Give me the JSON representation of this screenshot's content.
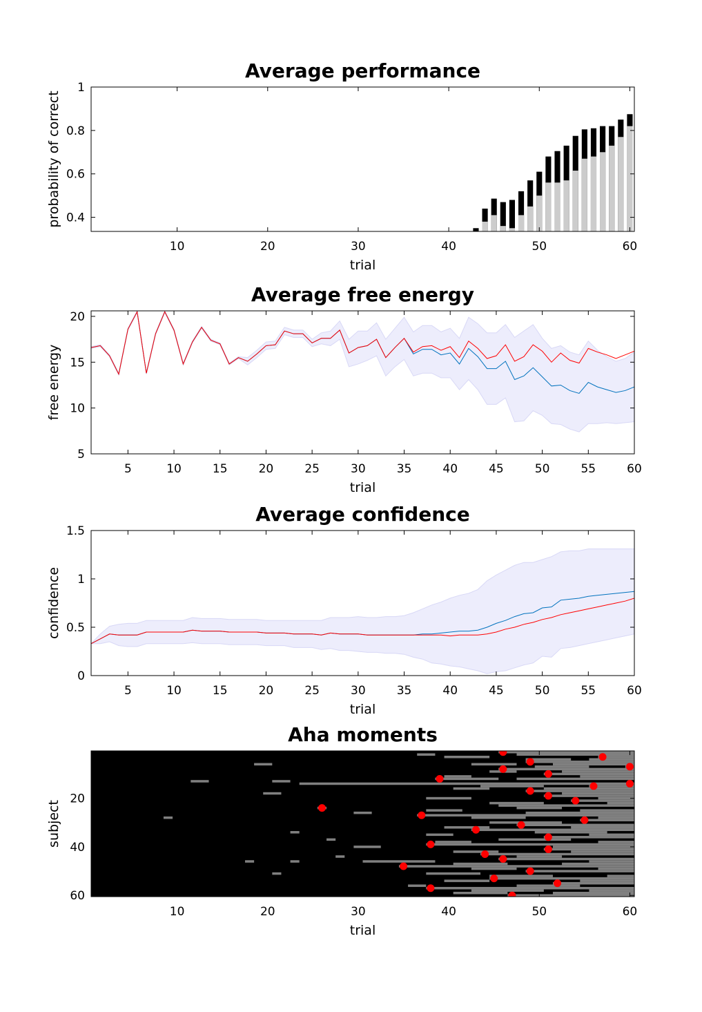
{
  "chart_data": [
    {
      "type": "bar",
      "title": "Average performance",
      "xlabel": "trial",
      "ylabel": "probability of correct",
      "x": [
        43,
        44,
        45,
        46,
        47,
        48,
        49,
        50,
        51,
        52,
        53,
        54,
        55,
        56,
        57,
        58,
        59,
        60
      ],
      "series": [
        {
          "color": "#000000",
          "values": [
            0.35,
            0.44,
            0.486,
            0.47,
            0.48,
            0.52,
            0.57,
            0.61,
            0.68,
            0.705,
            0.73,
            0.775,
            0.805,
            0.81,
            0.82,
            0.82,
            0.85,
            0.875
          ]
        },
        {
          "color": "#cccccc",
          "values": [
            0.3,
            0.38,
            0.41,
            0.36,
            0.35,
            0.41,
            0.45,
            0.5,
            0.56,
            0.56,
            0.57,
            0.615,
            0.67,
            0.68,
            0.7,
            0.73,
            0.77,
            0.82
          ]
        }
      ],
      "xlim": [
        0.5,
        60.5
      ],
      "xticks": [
        10,
        20,
        30,
        40,
        50,
        60
      ],
      "ylim": [
        0.335,
        1
      ],
      "yticks": [
        0.4,
        0.6,
        0.8,
        1
      ]
    },
    {
      "type": "line",
      "title": "Average free energy",
      "xlabel": "trial",
      "ylabel": "free energy",
      "x": [
        1,
        2,
        3,
        4,
        5,
        6,
        7,
        8,
        9,
        10,
        11,
        12,
        13,
        14,
        15,
        16,
        17,
        18,
        19,
        20,
        21,
        22,
        23,
        24,
        25,
        26,
        27,
        28,
        29,
        30,
        31,
        32,
        33,
        34,
        35,
        36,
        37,
        38,
        39,
        40,
        41,
        42,
        43,
        44,
        45,
        46,
        47,
        48,
        49,
        50,
        51,
        52,
        53,
        54,
        55,
        56,
        57,
        58,
        59,
        60
      ],
      "band_color": "#ededfc",
      "series": [
        {
          "color": "#0072bd",
          "values": [
            16.6,
            16.8,
            15.7,
            13.7,
            18.6,
            20.5,
            13.8,
            18.1,
            20.5,
            18.5,
            14.8,
            17.2,
            18.8,
            17.4,
            17.0,
            14.8,
            15.5,
            15.1,
            15.9,
            16.8,
            16.9,
            18.4,
            18.1,
            18.1,
            17.1,
            17.6,
            17.6,
            18.5,
            16.0,
            16.6,
            16.8,
            17.5,
            15.5,
            16.6,
            17.6,
            15.9,
            16.4,
            16.4,
            15.8,
            16.0,
            14.8,
            16.5,
            15.6,
            14.3,
            14.3,
            15.1,
            13.1,
            13.5,
            14.4,
            13.4,
            12.4,
            12.5,
            11.9,
            11.6,
            12.8,
            12.3,
            12.0,
            11.7,
            11.9,
            12.3
          ],
          "errors": [
            0.1,
            0.1,
            0.1,
            0.1,
            0.1,
            0.1,
            0.1,
            0.1,
            0.1,
            0.1,
            0.1,
            0.1,
            0.1,
            0.1,
            0.1,
            0.1,
            0.1,
            0.4,
            0.4,
            0.4,
            0.4,
            0.4,
            0.4,
            0.4,
            0.4,
            0.6,
            0.8,
            1.0,
            1.5,
            1.8,
            1.6,
            1.8,
            2.0,
            2.1,
            2.3,
            2.4,
            2.6,
            2.6,
            2.5,
            2.7,
            2.8,
            3.4,
            3.6,
            3.9,
            3.9,
            4.0,
            4.6,
            4.9,
            4.7,
            4.2,
            4.1,
            4.3,
            4.2,
            4.2,
            4.5,
            4.0,
            3.6,
            3.4,
            3.5,
            3.8
          ]
        },
        {
          "color": "#ff0000",
          "values": [
            16.6,
            16.8,
            15.7,
            13.7,
            18.6,
            20.5,
            13.8,
            18.1,
            20.5,
            18.5,
            14.8,
            17.2,
            18.8,
            17.4,
            17.0,
            14.8,
            15.5,
            15.1,
            15.9,
            16.8,
            16.9,
            18.4,
            18.1,
            18.1,
            17.1,
            17.6,
            17.6,
            18.5,
            16.0,
            16.6,
            16.8,
            17.5,
            15.5,
            16.6,
            17.6,
            16.1,
            16.7,
            16.8,
            16.3,
            16.7,
            15.5,
            17.3,
            16.5,
            15.4,
            15.7,
            16.9,
            15.1,
            15.6,
            16.9,
            16.2,
            15.0,
            16.0,
            15.2,
            14.9,
            16.5,
            16.1,
            15.8,
            15.4,
            15.8,
            16.2
          ]
        }
      ],
      "xlim": [
        1,
        60
      ],
      "xticks": [
        5,
        10,
        15,
        20,
        25,
        30,
        35,
        40,
        45,
        50,
        55,
        60
      ],
      "ylim": [
        5,
        20.6
      ],
      "yticks": [
        5,
        10,
        15,
        20
      ]
    },
    {
      "type": "line",
      "title": "Average confidence",
      "xlabel": "trial",
      "ylabel": "confidence",
      "x": [
        1,
        2,
        3,
        4,
        5,
        6,
        7,
        8,
        9,
        10,
        11,
        12,
        13,
        14,
        15,
        16,
        17,
        18,
        19,
        20,
        21,
        22,
        23,
        24,
        25,
        26,
        27,
        28,
        29,
        30,
        31,
        32,
        33,
        34,
        35,
        36,
        37,
        38,
        39,
        40,
        41,
        42,
        43,
        44,
        45,
        46,
        47,
        48,
        49,
        50,
        51,
        52,
        53,
        54,
        55,
        56,
        57,
        58,
        59,
        60
      ],
      "band_color": "#ededfc",
      "series": [
        {
          "color": "#0072bd",
          "values": [
            0.33,
            0.38,
            0.43,
            0.42,
            0.42,
            0.42,
            0.45,
            0.45,
            0.45,
            0.45,
            0.45,
            0.47,
            0.46,
            0.46,
            0.46,
            0.45,
            0.45,
            0.45,
            0.45,
            0.44,
            0.44,
            0.44,
            0.43,
            0.43,
            0.43,
            0.42,
            0.44,
            0.43,
            0.43,
            0.43,
            0.42,
            0.42,
            0.42,
            0.42,
            0.42,
            0.42,
            0.43,
            0.43,
            0.44,
            0.45,
            0.46,
            0.46,
            0.47,
            0.5,
            0.54,
            0.57,
            0.61,
            0.64,
            0.65,
            0.7,
            0.71,
            0.78,
            0.79,
            0.8,
            0.82,
            0.83,
            0.84,
            0.85,
            0.86,
            0.87
          ],
          "errors": [
            0,
            0.05,
            0.08,
            0.11,
            0.12,
            0.12,
            0.12,
            0.12,
            0.12,
            0.12,
            0.12,
            0.13,
            0.13,
            0.13,
            0.13,
            0.13,
            0.13,
            0.13,
            0.13,
            0.13,
            0.13,
            0.13,
            0.14,
            0.14,
            0.14,
            0.15,
            0.16,
            0.17,
            0.17,
            0.18,
            0.18,
            0.18,
            0.19,
            0.19,
            0.2,
            0.23,
            0.26,
            0.3,
            0.32,
            0.35,
            0.37,
            0.39,
            0.42,
            0.48,
            0.5,
            0.52,
            0.53,
            0.53,
            0.52,
            0.5,
            0.52,
            0.5,
            0.5,
            0.49,
            0.49,
            0.48,
            0.47,
            0.46,
            0.45,
            0.44
          ]
        },
        {
          "color": "#ff0000",
          "values": [
            0.33,
            0.38,
            0.43,
            0.42,
            0.42,
            0.42,
            0.45,
            0.45,
            0.45,
            0.45,
            0.45,
            0.47,
            0.46,
            0.46,
            0.46,
            0.45,
            0.45,
            0.45,
            0.45,
            0.44,
            0.44,
            0.44,
            0.43,
            0.43,
            0.43,
            0.42,
            0.44,
            0.43,
            0.43,
            0.43,
            0.42,
            0.42,
            0.42,
            0.42,
            0.42,
            0.42,
            0.42,
            0.42,
            0.42,
            0.41,
            0.42,
            0.42,
            0.42,
            0.43,
            0.45,
            0.48,
            0.5,
            0.53,
            0.55,
            0.58,
            0.6,
            0.63,
            0.65,
            0.67,
            0.69,
            0.71,
            0.73,
            0.75,
            0.77,
            0.8
          ]
        }
      ],
      "xlim": [
        1,
        60
      ],
      "xticks": [
        5,
        10,
        15,
        20,
        25,
        30,
        35,
        40,
        45,
        50,
        55,
        60
      ],
      "ylim": [
        0,
        1.5
      ],
      "yticks": [
        0,
        0.5,
        1,
        1.5
      ]
    },
    {
      "type": "heatmap",
      "title": "Aha moments",
      "xlabel": "trial",
      "ylabel": "subject",
      "background": "#000000",
      "cell_color": "#808080",
      "point_color": "#ff0000",
      "y_reversed": true,
      "cells": [
        [
          1,
          46,
          60
        ],
        [
          2,
          37,
          38
        ],
        [
          2,
          48,
          60
        ],
        [
          3,
          40,
          44
        ],
        [
          3,
          57,
          60
        ],
        [
          4,
          49,
          53
        ],
        [
          4,
          56,
          60
        ],
        [
          5,
          49,
          60
        ],
        [
          6,
          19,
          20
        ],
        [
          6,
          43,
          47
        ],
        [
          6,
          52,
          60
        ],
        [
          7,
          60,
          60
        ],
        [
          7,
          50,
          55
        ],
        [
          8,
          46,
          60
        ],
        [
          9,
          45,
          47
        ],
        [
          9,
          53,
          60
        ],
        [
          10,
          51,
          60
        ],
        [
          11,
          40,
          42
        ],
        [
          11,
          55,
          60
        ],
        [
          12,
          39,
          45
        ],
        [
          12,
          48,
          60
        ],
        [
          13,
          12,
          13
        ],
        [
          13,
          21,
          22
        ],
        [
          14,
          24,
          60
        ],
        [
          15,
          56,
          60
        ],
        [
          15,
          44,
          50
        ],
        [
          16,
          41,
          44
        ],
        [
          16,
          51,
          60
        ],
        [
          17,
          49,
          60
        ],
        [
          18,
          20,
          21
        ],
        [
          18,
          53,
          60
        ],
        [
          19,
          51,
          60
        ],
        [
          20,
          38,
          42
        ],
        [
          20,
          57,
          60
        ],
        [
          21,
          54,
          60
        ],
        [
          22,
          45,
          50
        ],
        [
          22,
          58,
          60
        ],
        [
          23,
          46,
          60
        ],
        [
          24,
          26,
          26
        ],
        [
          24,
          48,
          52
        ],
        [
          25,
          38,
          41
        ],
        [
          25,
          55,
          60
        ],
        [
          26,
          30,
          31
        ],
        [
          26,
          49,
          60
        ],
        [
          27,
          37,
          60
        ],
        [
          28,
          9,
          9
        ],
        [
          28,
          43,
          48
        ],
        [
          28,
          57,
          60
        ],
        [
          29,
          55,
          60
        ],
        [
          30,
          45,
          52
        ],
        [
          31,
          48,
          60
        ],
        [
          32,
          40,
          44
        ],
        [
          32,
          54,
          60
        ],
        [
          33,
          43,
          60
        ],
        [
          34,
          23,
          23
        ],
        [
          34,
          50,
          57
        ],
        [
          35,
          38,
          40
        ],
        [
          35,
          56,
          60
        ],
        [
          36,
          51,
          60
        ],
        [
          37,
          27,
          27
        ],
        [
          37,
          46,
          53
        ],
        [
          38,
          39,
          42
        ],
        [
          38,
          57,
          60
        ],
        [
          39,
          38,
          60
        ],
        [
          40,
          30,
          32
        ],
        [
          40,
          52,
          60
        ],
        [
          41,
          51,
          60
        ],
        [
          42,
          41,
          45
        ],
        [
          42,
          54,
          60
        ],
        [
          43,
          44,
          60
        ],
        [
          44,
          28,
          28
        ],
        [
          44,
          48,
          52
        ],
        [
          45,
          46,
          60
        ],
        [
          46,
          18,
          18
        ],
        [
          46,
          23,
          23
        ],
        [
          46,
          31,
          38
        ],
        [
          46,
          56,
          60
        ],
        [
          47,
          41,
          46
        ],
        [
          47,
          53,
          60
        ],
        [
          48,
          35,
          60
        ],
        [
          49,
          43,
          47
        ],
        [
          49,
          57,
          60
        ],
        [
          50,
          49,
          60
        ],
        [
          51,
          21,
          21
        ],
        [
          51,
          38,
          43
        ],
        [
          52,
          45,
          51
        ],
        [
          52,
          58,
          60
        ],
        [
          53,
          45,
          60
        ],
        [
          54,
          40,
          44
        ],
        [
          54,
          55,
          60
        ],
        [
          55,
          52,
          60
        ],
        [
          56,
          36,
          37
        ],
        [
          56,
          48,
          54
        ],
        [
          57,
          38,
          60
        ],
        [
          58,
          43,
          50
        ],
        [
          58,
          56,
          60
        ],
        [
          59,
          41,
          46
        ],
        [
          59,
          52,
          60
        ],
        [
          60,
          47,
          60
        ]
      ],
      "points": [
        [
          46,
          1
        ],
        [
          57,
          3
        ],
        [
          49,
          5
        ],
        [
          60,
          7
        ],
        [
          46,
          8
        ],
        [
          51,
          10
        ],
        [
          39,
          12
        ],
        [
          60,
          14
        ],
        [
          56,
          15
        ],
        [
          49,
          17
        ],
        [
          51,
          19
        ],
        [
          54,
          21
        ],
        [
          26,
          24
        ],
        [
          37,
          27
        ],
        [
          55,
          29
        ],
        [
          48,
          31
        ],
        [
          43,
          33
        ],
        [
          51,
          36
        ],
        [
          38,
          39
        ],
        [
          51,
          41
        ],
        [
          44,
          43
        ],
        [
          46,
          45
        ],
        [
          35,
          48
        ],
        [
          49,
          50
        ],
        [
          45,
          53
        ],
        [
          52,
          55
        ],
        [
          38,
          57
        ],
        [
          47,
          60
        ]
      ],
      "xlim": [
        0.5,
        60.5
      ],
      "xticks": [
        10,
        20,
        30,
        40,
        50,
        60
      ],
      "ylim": [
        0.5,
        60.5
      ],
      "yticks": [
        20,
        40,
        60
      ]
    }
  ]
}
